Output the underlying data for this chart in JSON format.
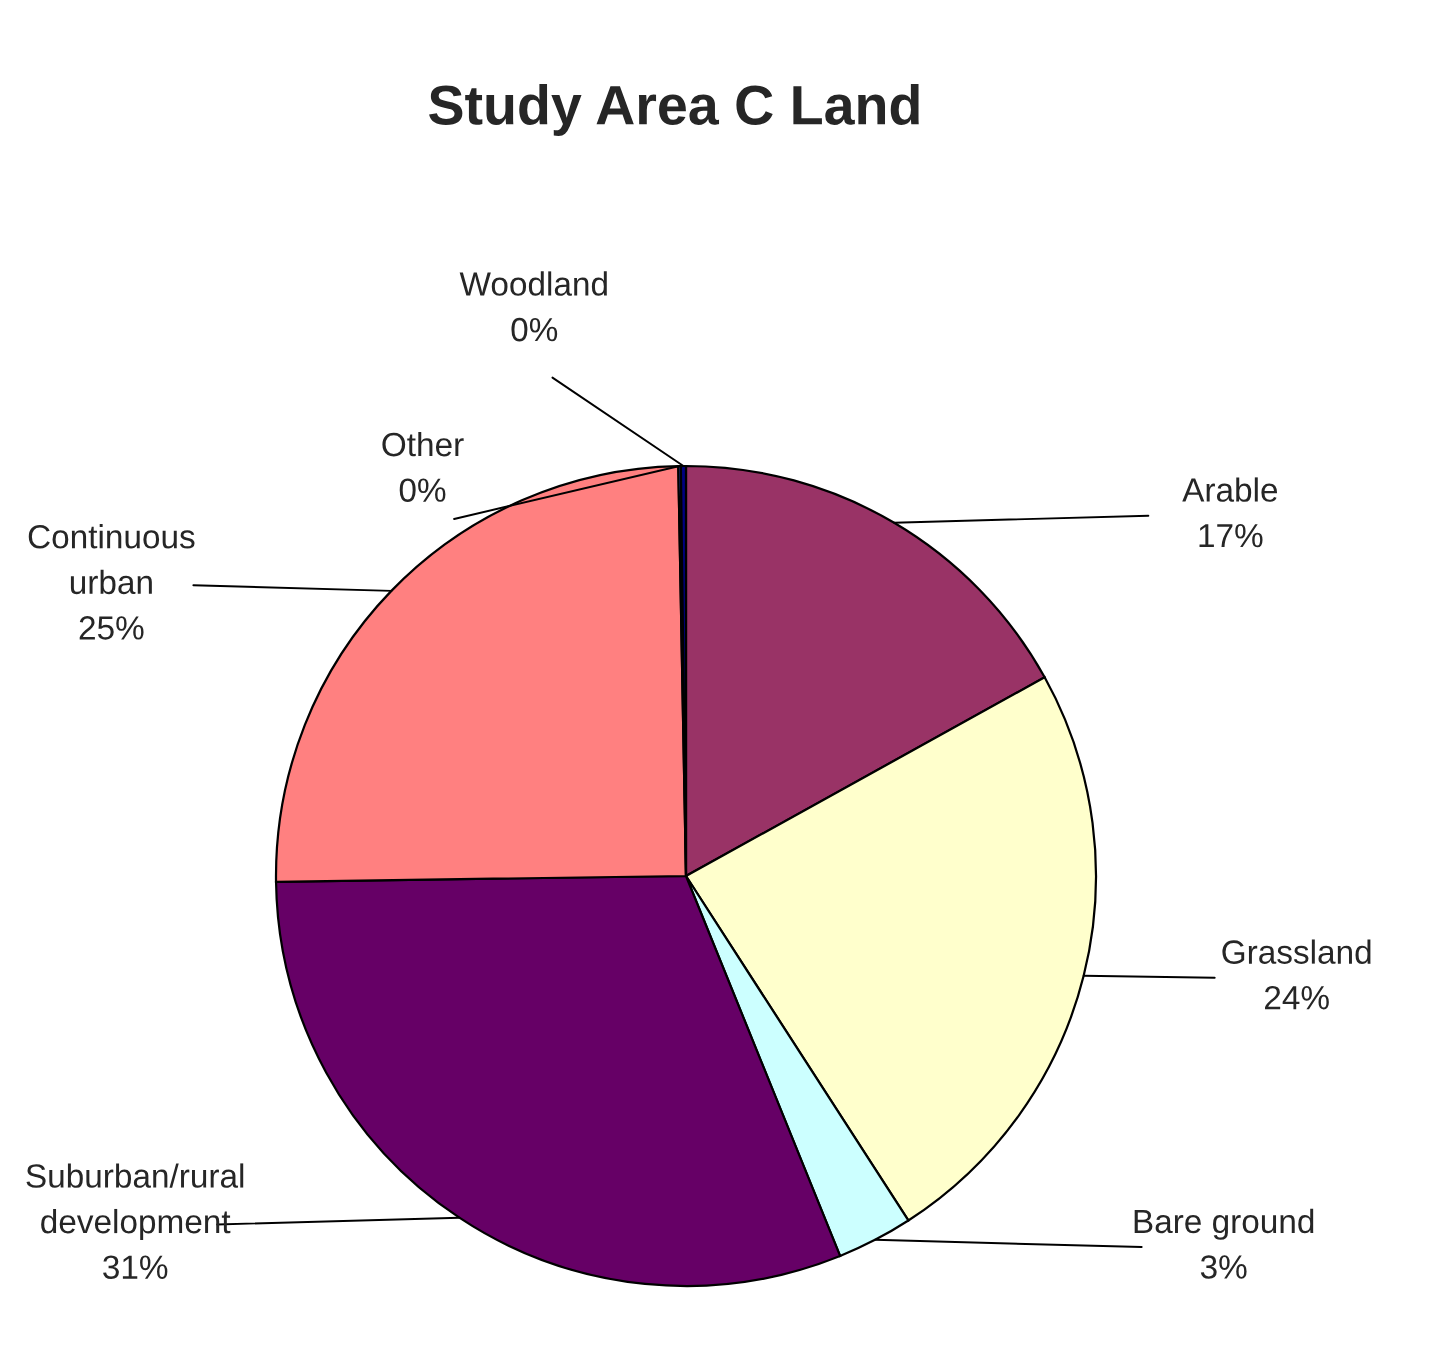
{
  "chart_data": {
    "type": "pie",
    "title": "Study Area C Land",
    "categories": [
      "Arable",
      "Grassland",
      "Bare ground",
      "Suburban/rural development",
      "Continuous urban",
      "Other",
      "Woodland"
    ],
    "values": [
      17,
      24,
      3,
      31,
      25,
      0.1,
      0.2
    ],
    "value_labels": [
      "17%",
      "24%",
      "3%",
      "31%",
      "25%",
      "0%",
      "0%"
    ],
    "colors": [
      "#993366",
      "#ffffcc",
      "#ccffff",
      "#660066",
      "#ff8080",
      "#3366ff",
      "#000080"
    ]
  }
}
